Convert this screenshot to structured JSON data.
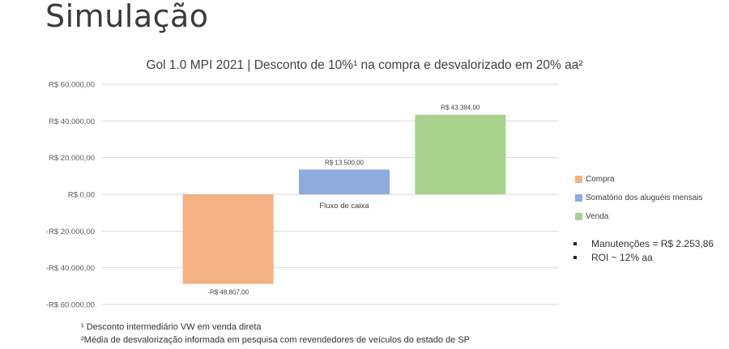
{
  "slide_title": "Simulação",
  "chart_data": {
    "type": "bar",
    "title": "Gol 1.0 MPI 2021 | Desconto de 10%¹ na compra e desvalorizado em 20% aa²",
    "categories": [
      "Fluxo de caixa"
    ],
    "ylim": [
      -60000,
      60000
    ],
    "yticks": [
      60000,
      40000,
      20000,
      0,
      -20000,
      -40000,
      -60000
    ],
    "ytick_labels": [
      "R$ 60.000,00",
      "R$ 40.000,00",
      "R$ 20.000,00",
      "R$ 0,00",
      "-R$ 20.000,00",
      "-R$ 40.000,00",
      "-R$ 60.000,00"
    ],
    "grid": true,
    "legend_position": "right",
    "series": [
      {
        "name": "Compra",
        "values": [
          -48807
        ],
        "label": "-R$ 48.807,00",
        "color": "#F4B183"
      },
      {
        "name": "Somatório dos aluguéis mensais",
        "values": [
          13500
        ],
        "label": "R$ 13.500,00",
        "color": "#8FAADC"
      },
      {
        "name": "Venda",
        "values": [
          43384
        ],
        "label": "R$ 43.384,00",
        "color": "#A9D18E"
      }
    ]
  },
  "notes": [
    "Manutenções = R$ 2.253,86",
    "ROI ~ 12% aa"
  ],
  "footnotes": [
    "¹ Desconto intermediário VW em venda direta",
    "²Média de desvalorização informada em pesquisa com revendedores de veículos do estado de SP"
  ]
}
